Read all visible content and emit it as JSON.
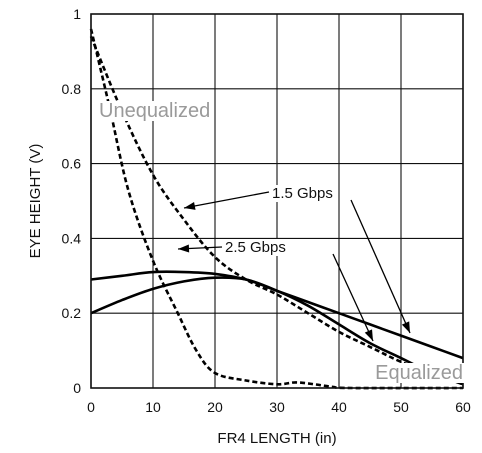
{
  "chart_data": {
    "type": "line",
    "xlabel": "FR4 LENGTH (in)",
    "ylabel": "EYE HEIGHT (V)",
    "xlim": [
      0,
      60
    ],
    "ylim": [
      0,
      1
    ],
    "xticks": [
      0,
      10,
      20,
      30,
      40,
      50,
      60
    ],
    "yticks": [
      0,
      0.2,
      0.4,
      0.6,
      0.8,
      1
    ],
    "ytick_labels": [
      "0",
      "0.2",
      "0.4",
      "0.6",
      "0.8",
      "1"
    ],
    "grid": true,
    "series": [
      {
        "style": "dashed",
        "x": [
          0,
          5,
          10,
          15,
          20,
          25,
          30,
          35,
          40,
          45,
          50,
          55,
          60
        ],
        "y": [
          0.94,
          0.74,
          0.57,
          0.45,
          0.35,
          0.29,
          0.25,
          0.2,
          0.15,
          0.11,
          0.07,
          0.04,
          0.01
        ]
      },
      {
        "style": "dashed",
        "x": [
          0,
          3,
          6,
          10,
          14,
          17,
          20,
          25,
          30,
          33,
          36,
          39,
          42,
          60
        ],
        "y": [
          0.96,
          0.75,
          0.53,
          0.34,
          0.2,
          0.1,
          0.04,
          0.02,
          0.01,
          0.015,
          0.01,
          0.003,
          0,
          0
        ]
      },
      {
        "style": "solid",
        "x": [
          0,
          5,
          10,
          15,
          20,
          25,
          30,
          35,
          40,
          45,
          50,
          55,
          60
        ],
        "y": [
          0.29,
          0.3,
          0.31,
          0.31,
          0.305,
          0.29,
          0.26,
          0.23,
          0.2,
          0.17,
          0.14,
          0.11,
          0.08
        ]
      },
      {
        "style": "solid",
        "x": [
          0,
          5,
          10,
          15,
          20,
          25,
          30,
          35,
          40,
          45,
          50,
          55,
          60
        ],
        "y": [
          0.2,
          0.235,
          0.265,
          0.285,
          0.295,
          0.29,
          0.26,
          0.22,
          0.17,
          0.12,
          0.08,
          0.04,
          0.01
        ]
      }
    ],
    "annotations": [
      {
        "text": "1.5 Gbps"
      },
      {
        "text": "2.5 Gbps"
      }
    ],
    "regions": [
      {
        "text": "Unequalized"
      },
      {
        "text": "Equalized"
      }
    ]
  }
}
